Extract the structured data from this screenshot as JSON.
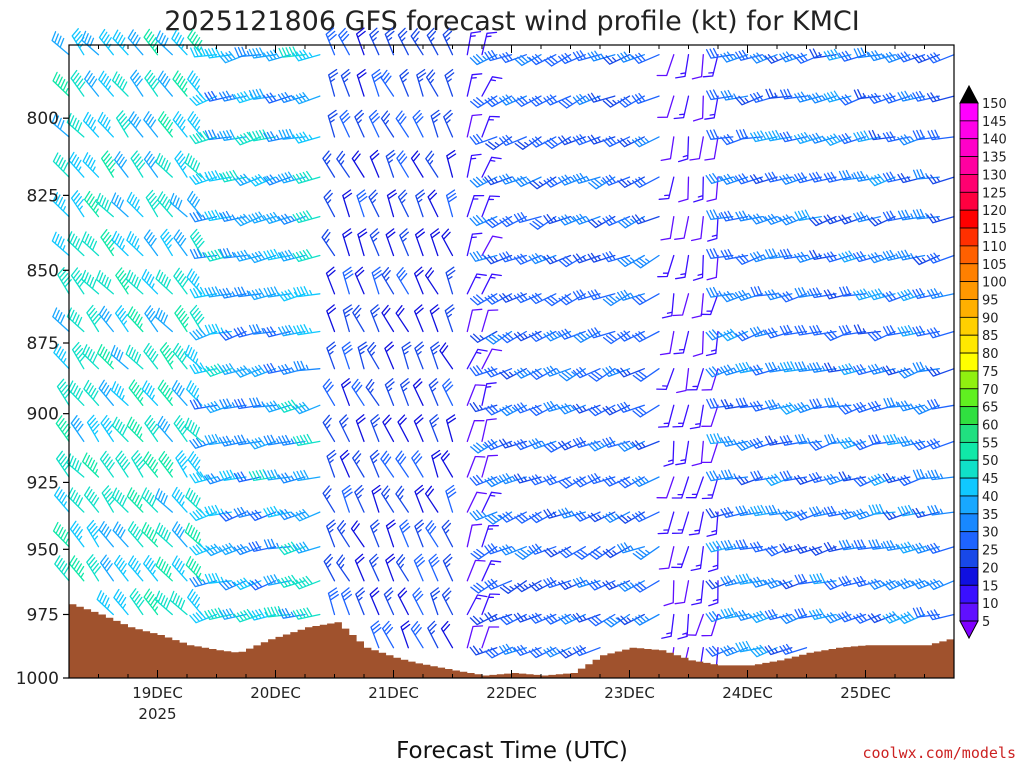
{
  "chart_data": {
    "type": "wind-barb profile",
    "title": "2025121806 GFS forecast wind profile (kt) for KMCI",
    "xlabel": "Forecast Time (UTC)",
    "ylabel": "",
    "credit": "coolwx.com/models",
    "y_axis": {
      "scale": "pressure (inverted)",
      "ylim": [
        1000,
        777
      ],
      "ticks": [
        "800",
        "825",
        "850",
        "875",
        "900",
        "925",
        "950",
        "975",
        "1000"
      ]
    },
    "x_axis": {
      "xlim_hours": [
        0,
        180
      ],
      "ticks": [
        {
          "label": "19DEC",
          "sublabel": "2025",
          "hour": 18
        },
        {
          "label": "20DEC",
          "sublabel": "",
          "hour": 42
        },
        {
          "label": "21DEC",
          "sublabel": "",
          "hour": 66
        },
        {
          "label": "22DEC",
          "sublabel": "",
          "hour": 90
        },
        {
          "label": "23DEC",
          "sublabel": "",
          "hour": 114
        },
        {
          "label": "24DEC",
          "sublabel": "",
          "hour": 138
        },
        {
          "label": "25DEC",
          "sublabel": "",
          "hour": 162
        }
      ]
    },
    "colorbar": {
      "levels": [
        "5",
        "10",
        "15",
        "20",
        "25",
        "30",
        "35",
        "40",
        "45",
        "50",
        "55",
        "60",
        "65",
        "70",
        "75",
        "80",
        "85",
        "90",
        "95",
        "100",
        "105",
        "110",
        "115",
        "120",
        "125",
        "130",
        "135",
        "140",
        "145",
        "150"
      ],
      "colors": [
        "#8000ff",
        "#6010ff",
        "#3a10ff",
        "#1010e0",
        "#1848e8",
        "#1e64ff",
        "#1888ff",
        "#18a8ff",
        "#10c8ff",
        "#10e0c8",
        "#10e8a8",
        "#20e080",
        "#30e040",
        "#60f020",
        "#90f010",
        "#ffff00",
        "#ffe800",
        "#ffd000",
        "#ffb000",
        "#ff9800",
        "#ff8000",
        "#ff6000",
        "#ff3000",
        "#ff0000",
        "#ff0040",
        "#ff0070",
        "#ff00a0",
        "#ff00c8",
        "#ff00e8",
        "#ff00ff"
      ],
      "top_triangle_color": "#000000",
      "bottom_triangle_color": "#8000ff"
    },
    "terrain_color": "#a0522d",
    "surface_pressure": {
      "hours": [
        0,
        6,
        12,
        18,
        24,
        30,
        34,
        40,
        48,
        54,
        60,
        66,
        70,
        78,
        84,
        90,
        96,
        102,
        108,
        114,
        120,
        126,
        132,
        138,
        144,
        150,
        156,
        162,
        168,
        174,
        180
      ],
      "values": [
        971,
        975,
        980,
        983,
        987,
        989,
        990,
        985,
        980,
        978,
        988,
        992,
        994,
        997,
        999,
        998,
        999,
        998,
        991,
        988,
        989,
        993,
        995,
        995,
        993,
        990,
        988,
        987,
        987,
        987,
        984
      ]
    },
    "wind_levels_hpa": [
      780,
      793,
      806,
      819,
      832,
      845,
      858,
      871,
      884,
      897,
      910,
      923,
      936,
      949,
      962,
      975,
      988
    ],
    "wind_times_hours": [
      0,
      3,
      6,
      9,
      12,
      15,
      18,
      21,
      24,
      27,
      30,
      33,
      36,
      39,
      42,
      45,
      48,
      51,
      54,
      57,
      60,
      63,
      66,
      69,
      72,
      75,
      78,
      81,
      84,
      87,
      90,
      93,
      96,
      99,
      102,
      105,
      108,
      111,
      114,
      117,
      120,
      123,
      126,
      129,
      132,
      135,
      138,
      141,
      144,
      147,
      150,
      153,
      156,
      159,
      162,
      165,
      168,
      171,
      174,
      177,
      180
    ],
    "wind_regimes": [
      {
        "start_hour": 0,
        "end_hour": 30,
        "direction_deg": 320,
        "speed_low_kt": 40,
        "speed_high_kt": 55
      },
      {
        "start_hour": 30,
        "end_hour": 54,
        "direction_deg": 255,
        "speed_low_kt": 30,
        "speed_high_kt": 50
      },
      {
        "start_hour": 54,
        "end_hour": 80,
        "direction_deg": 335,
        "speed_low_kt": 20,
        "speed_high_kt": 30
      },
      {
        "start_hour": 80,
        "end_hour": 86,
        "direction_deg": 20,
        "speed_low_kt": 10,
        "speed_high_kt": 15
      },
      {
        "start_hour": 86,
        "end_hour": 122,
        "direction_deg": 245,
        "speed_low_kt": 25,
        "speed_high_kt": 35
      },
      {
        "start_hour": 122,
        "end_hour": 134,
        "direction_deg": 190,
        "speed_low_kt": 10,
        "speed_high_kt": 15
      },
      {
        "start_hour": 134,
        "end_hour": 180,
        "direction_deg": 255,
        "speed_low_kt": 25,
        "speed_high_kt": 40
      }
    ]
  }
}
